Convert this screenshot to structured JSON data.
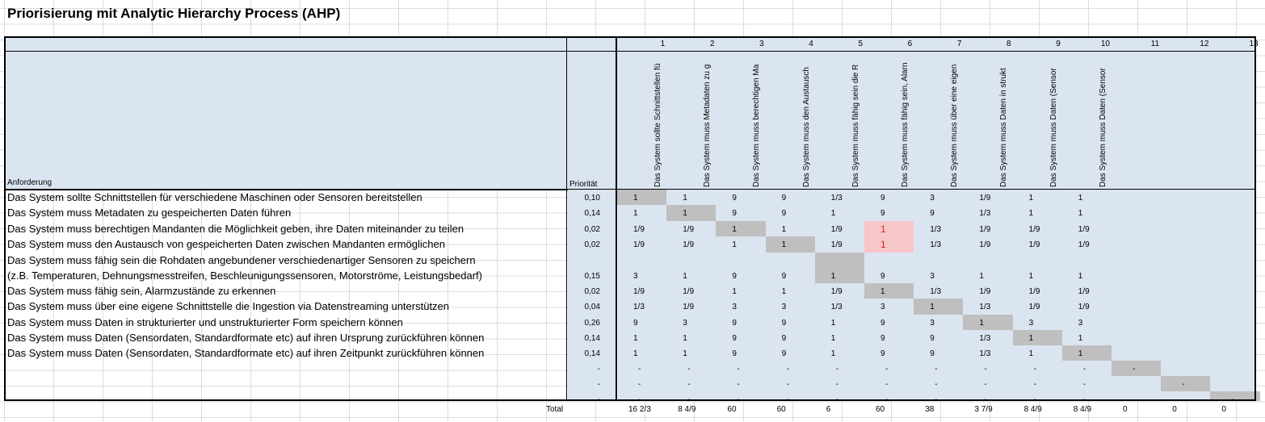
{
  "title": "Priorisierung mit Analytic Hierarchy Process (AHP)",
  "header": {
    "anforderung_label": "Anforderung",
    "prioritaet_label": "Priorität",
    "column_numbers": [
      "1",
      "2",
      "3",
      "4",
      "5",
      "6",
      "7",
      "8",
      "9",
      "10",
      "11",
      "12",
      "13"
    ],
    "column_headers": [
      "Das System sollte Schnittstellen fü",
      "Das System muss Metadaten zu g",
      "Das System muss berechtigen Ma",
      "Das System muss den Austausch",
      "Das System muss fähig sein die R",
      "Das System muss fähig sein, Alarn",
      "Das System muss über eine eigen",
      "Das System muss Daten in strukt",
      "Das System muss Daten (Sensor",
      "Das System muss Daten (Sensor",
      "",
      "",
      ""
    ]
  },
  "rows": [
    {
      "text": "Das System sollte Schnittstellen für verschiedene Maschinen oder Sensoren bereitstellen",
      "prio": "0,10",
      "cells": [
        "1",
        "1",
        "9",
        "9",
        "1/3",
        "9",
        "3",
        "1/9",
        "1",
        "1",
        "",
        "",
        ""
      ]
    },
    {
      "text": "Das System muss Metadaten zu gespeicherten Daten führen",
      "prio": "0,14",
      "cells": [
        "1",
        "1",
        "9",
        "9",
        "1",
        "9",
        "9",
        "1/3",
        "1",
        "1",
        "",
        "",
        ""
      ]
    },
    {
      "text": "Das System muss berechtigen Mandanten die Möglichkeit geben, ihre Daten miteinander zu teilen",
      "prio": "0,02",
      "cells": [
        "1/9",
        "1/9",
        "1",
        "1",
        "1/9",
        "1",
        "1/3",
        "1/9",
        "1/9",
        "1/9",
        "",
        "",
        ""
      ]
    },
    {
      "text": "Das System muss den Austausch von gespeicherten Daten zwischen Mandanten ermöglichen",
      "prio": "0,02",
      "cells": [
        "1/9",
        "1/9",
        "1",
        "1",
        "1/9",
        "1",
        "1/3",
        "1/9",
        "1/9",
        "1/9",
        "",
        "",
        ""
      ]
    },
    {
      "text": "Das System muss fähig sein die Rohdaten angebundener verschiedenartiger Sensoren zu speichern",
      "text2": " (z.B. Temperaturen, Dehnungsmesstreifen, Beschleunigungssensoren, Motorströme, Leistungsbedarf)",
      "prio": "0,15",
      "cells": [
        "3",
        "1",
        "9",
        "9",
        "1",
        "9",
        "3",
        "1",
        "1",
        "1",
        "",
        "",
        ""
      ]
    },
    {
      "text": "Das System muss fähig sein, Alarmzustände zu erkennen",
      "prio": "0,02",
      "cells": [
        "1/9",
        "1/9",
        "1",
        "1",
        "1/9",
        "1",
        "1/3",
        "1/9",
        "1/9",
        "1/9",
        "",
        "",
        ""
      ]
    },
    {
      "text": "Das System muss über eine eigene Schnittstelle die Ingestion via Datenstreaming unterstützen",
      "prio": "0,04",
      "cells": [
        "1/3",
        "1/9",
        "3",
        "3",
        "1/3",
        "3",
        "1",
        "1/3",
        "1/9",
        "1/9",
        "",
        "",
        ""
      ]
    },
    {
      "text": "Das System muss Daten in strukturierter und unstrukturierter Form speichern können",
      "prio": "0,26",
      "cells": [
        "9",
        "3",
        "9",
        "9",
        "1",
        "9",
        "3",
        "1",
        "3",
        "3",
        "",
        "",
        ""
      ]
    },
    {
      "text": "Das System muss Daten (Sensordaten, Standardformate etc) auf ihren Ursprung zurückführen können",
      "prio": "0,14",
      "cells": [
        "1",
        "1",
        "9",
        "9",
        "1",
        "9",
        "9",
        "1/3",
        "1",
        "1",
        "",
        "",
        ""
      ]
    },
    {
      "text": "Das System muss Daten (Sensordaten, Standardformate etc) auf ihren Zeitpunkt zurückführen können",
      "prio": "0,14",
      "cells": [
        "1",
        "1",
        "9",
        "9",
        "1",
        "9",
        "9",
        "1/3",
        "1",
        "1",
        "",
        "",
        ""
      ]
    },
    {
      "text": "",
      "prio": "-",
      "cells": [
        "-",
        "-",
        "-",
        "-",
        "-",
        "-",
        "-",
        "-",
        "-",
        "-",
        "-",
        "",
        ""
      ]
    },
    {
      "text": "",
      "prio": "-",
      "cells": [
        "-",
        "-",
        "-",
        "-",
        "-",
        "-",
        "-",
        "-",
        "-",
        "-",
        "",
        "-",
        ""
      ]
    },
    {
      "text": "",
      "prio": "-",
      "cells": [
        "-",
        "-",
        "-",
        "-",
        "-",
        "-",
        "-",
        "-",
        "-",
        "-",
        "",
        "",
        "-"
      ]
    }
  ],
  "totals_label": "Total",
  "totals": [
    "16 2/3",
    "8 4/9",
    "60",
    "60",
    "6",
    "60",
    "38",
    "3 7/9",
    "8 4/9",
    "8 4/9",
    "0",
    "0",
    "0"
  ],
  "colors": {
    "header_fill": "#dbe5f1",
    "diagonal_fill": "#bfbfbf",
    "highlight_fill": "#f7c6c9",
    "highlight_text": "#e02020"
  }
}
